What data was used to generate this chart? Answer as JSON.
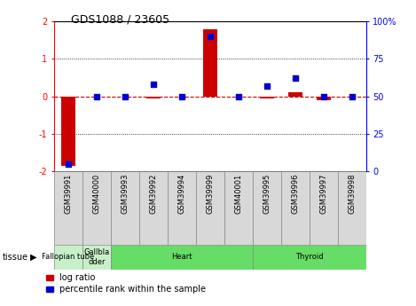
{
  "title": "GDS1088 / 23605",
  "samples": [
    "GSM39991",
    "GSM40000",
    "GSM39993",
    "GSM39992",
    "GSM39994",
    "GSM39999",
    "GSM40001",
    "GSM39995",
    "GSM39996",
    "GSM39997",
    "GSM39998"
  ],
  "log_ratio": [
    -1.85,
    0.0,
    0.0,
    -0.05,
    0.0,
    1.8,
    0.0,
    -0.05,
    0.1,
    -0.1,
    0.0
  ],
  "percentile_rank": [
    5,
    50,
    50,
    58,
    50,
    90,
    50,
    57,
    62,
    50,
    50
  ],
  "tissues": [
    {
      "label": "Fallopian tube",
      "start": 0,
      "end": 1,
      "color": "#c8f0c8"
    },
    {
      "label": "Gallbla\ndder",
      "start": 1,
      "end": 2,
      "color": "#c8f0c8"
    },
    {
      "label": "Heart",
      "start": 2,
      "end": 7,
      "color": "#66dd66"
    },
    {
      "label": "Thyroid",
      "start": 7,
      "end": 11,
      "color": "#66dd66"
    }
  ],
  "ylim": [
    -2,
    2
  ],
  "y2lim": [
    0,
    100
  ],
  "yticks": [
    -2,
    -1,
    0,
    1,
    2
  ],
  "y2ticks": [
    0,
    25,
    50,
    75,
    100
  ],
  "ytick_labels": [
    "-2",
    "-1",
    "0",
    "1",
    "2"
  ],
  "y2tick_labels": [
    "0",
    "25",
    "50",
    "75",
    "100%"
  ],
  "bar_color": "#CC0000",
  "dot_color": "#0000CC",
  "zero_line_color": "#CC0000",
  "dot_size": 18,
  "background_color": "#ffffff",
  "plot_bg": "#ffffff"
}
